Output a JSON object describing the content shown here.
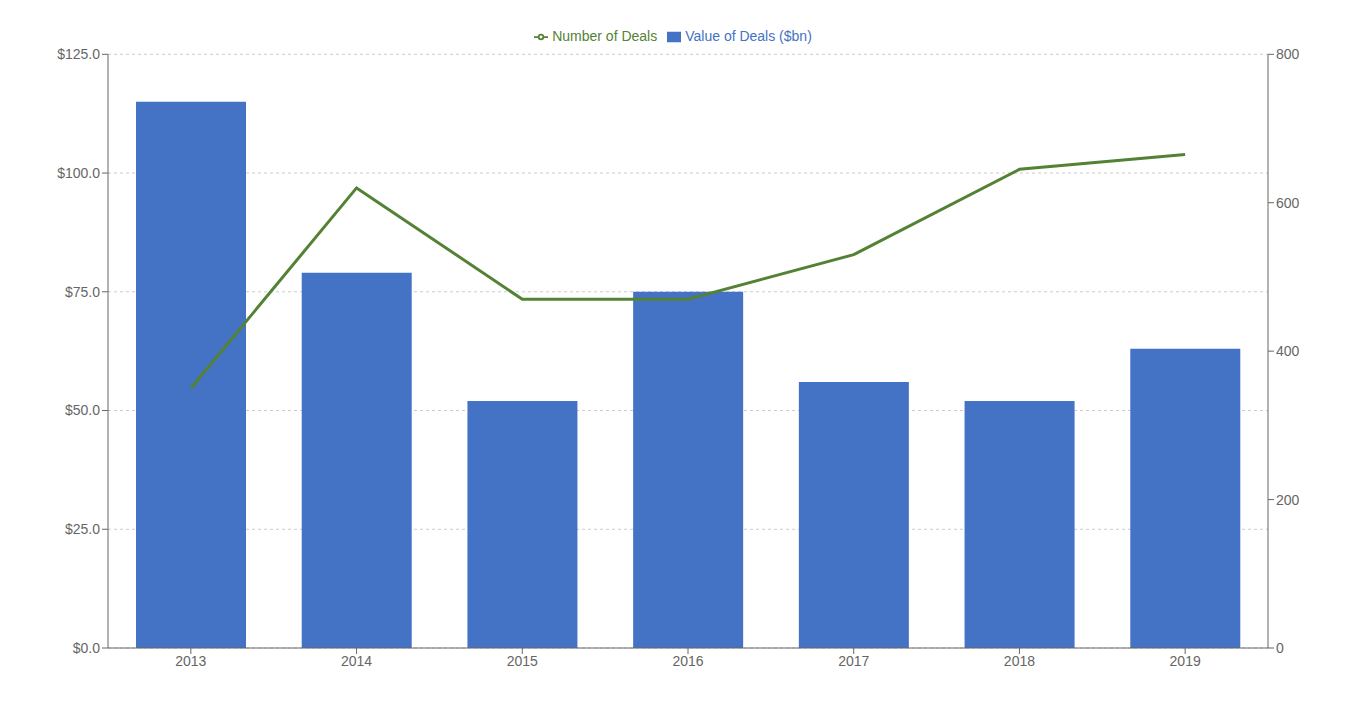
{
  "chart_data": {
    "type": "bar",
    "categories": [
      "2013",
      "2014",
      "2015",
      "2016",
      "2017",
      "2018",
      "2019"
    ],
    "series": [
      {
        "name": "Value of Deals ($bn)",
        "type": "bar",
        "color": "#4472C4",
        "values": [
          115.0,
          79.0,
          52.0,
          75.0,
          56.0,
          52.0,
          63.0
        ]
      },
      {
        "name": "Number of Deals",
        "type": "line",
        "color": "#548235",
        "axis": "y2",
        "values": [
          350,
          620,
          470,
          470,
          530,
          645,
          665
        ]
      }
    ],
    "ylim": [
      0,
      125
    ],
    "yticks": [
      {
        "value": 0,
        "label": "$0.0"
      },
      {
        "value": 25.0,
        "label": "$25.0"
      },
      {
        "value": 50.0,
        "label": "$50.0"
      },
      {
        "value": 75.0,
        "label": "$75.0"
      },
      {
        "value": 100.0,
        "label": "$100.0"
      },
      {
        "value": 125.0,
        "label": "$125.0"
      }
    ],
    "y2lim": [
      0,
      800
    ],
    "y2ticks": [
      0,
      200,
      400,
      600,
      800
    ],
    "grid": true,
    "legend": "top"
  }
}
